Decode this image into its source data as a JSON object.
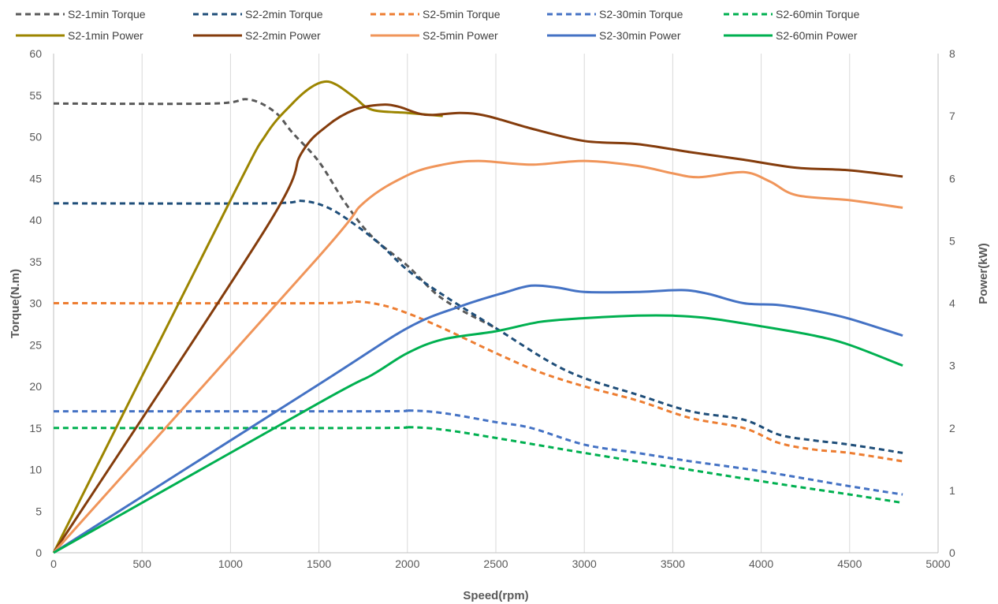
{
  "chart_data": {
    "type": "line",
    "xlabel": "Speed(rpm)",
    "ylabel_left": "Torque(N.m)",
    "ylabel_right": "Power(kW)",
    "xlim": [
      0,
      5000
    ],
    "ylim_left": [
      0,
      60
    ],
    "ylim_right": [
      0,
      8
    ],
    "x_ticks": [
      0,
      500,
      1000,
      1500,
      2000,
      2500,
      3000,
      3500,
      4000,
      4500,
      5000
    ],
    "y_ticks_left": [
      0,
      5,
      10,
      15,
      20,
      25,
      30,
      35,
      40,
      45,
      50,
      55,
      60
    ],
    "y_ticks_right": [
      0,
      1,
      2,
      3,
      4,
      5,
      6,
      7,
      8
    ],
    "grid": "vertical",
    "legend_position": "top",
    "series": [
      {
        "name": "S2-1min Torque",
        "axis": "left",
        "style": "dashed",
        "color": "#595959",
        "x": [
          0,
          900,
          1100,
          1250,
          1350,
          1500,
          1650,
          1800,
          2000,
          2200,
          2500
        ],
        "y": [
          54,
          54,
          54.5,
          53,
          50.5,
          47,
          42,
          38,
          34.5,
          30.5,
          27
        ]
      },
      {
        "name": "S2-2min Torque",
        "axis": "left",
        "style": "dashed",
        "color": "#1f4e79",
        "x": [
          0,
          1200,
          1400,
          1550,
          1700,
          1850,
          2000,
          2200,
          2500,
          2800,
          3000,
          3300,
          3600,
          3900,
          4100,
          4300,
          4500,
          4800
        ],
        "y": [
          42,
          42,
          42.3,
          41.5,
          39.5,
          37,
          34,
          31,
          27,
          23,
          21,
          19,
          17,
          16,
          14.2,
          13.5,
          13,
          12
        ]
      },
      {
        "name": "S2-5min Torque",
        "axis": "left",
        "style": "dashed",
        "color": "#ed7d31",
        "x": [
          0,
          1500,
          1700,
          1850,
          2000,
          2200,
          2500,
          2750,
          3000,
          3300,
          3600,
          3900,
          4100,
          4300,
          4500,
          4800
        ],
        "y": [
          30,
          30,
          30.2,
          29.8,
          28.8,
          27,
          24,
          21.7,
          20,
          18.3,
          16.2,
          15,
          13.2,
          12.4,
          12,
          11
        ]
      },
      {
        "name": "S2-30min Torque",
        "axis": "left",
        "style": "dashed",
        "color": "#4472c4",
        "x": [
          0,
          1800,
          2000,
          2200,
          2500,
          2700,
          3000,
          3300,
          3600,
          4000,
          4500,
          4800
        ],
        "y": [
          17,
          17,
          17.1,
          16.8,
          15.7,
          15,
          13,
          12,
          11,
          9.8,
          8,
          7
        ]
      },
      {
        "name": "S2-60min Torque",
        "axis": "left",
        "style": "dashed",
        "color": "#00b050",
        "x": [
          0,
          1800,
          2000,
          2200,
          2500,
          3000,
          3500,
          4000,
          4500,
          4800
        ],
        "y": [
          15,
          15,
          15.1,
          14.8,
          13.8,
          12,
          10.3,
          8.6,
          7,
          6
        ]
      },
      {
        "name": "S2-1min Power",
        "axis": "right",
        "style": "solid",
        "color": "#9c8500",
        "x": [
          0,
          1000,
          1200,
          1350,
          1450,
          1530,
          1600,
          1700,
          1800,
          2000,
          2200
        ],
        "y": [
          0,
          5.65,
          6.7,
          7.2,
          7.45,
          7.55,
          7.5,
          7.3,
          7.1,
          7.05,
          7.0
        ]
      },
      {
        "name": "S2-2min Power",
        "axis": "right",
        "style": "solid",
        "color": "#843c0c",
        "x": [
          0,
          1200,
          1400,
          1550,
          1700,
          1850,
          1950,
          2100,
          2300,
          2450,
          2700,
          3000,
          3300,
          3600,
          3900,
          4200,
          4500,
          4800
        ],
        "y": [
          0,
          5.2,
          6.4,
          6.85,
          7.1,
          7.18,
          7.15,
          7.02,
          7.05,
          7.0,
          6.8,
          6.6,
          6.55,
          6.42,
          6.3,
          6.17,
          6.13,
          6.03
        ]
      },
      {
        "name": "S2-5min Power",
        "axis": "right",
        "style": "solid",
        "color": "#f0955a",
        "x": [
          0,
          1500,
          1750,
          2000,
          2200,
          2400,
          2700,
          3000,
          3300,
          3500,
          3650,
          3900,
          4050,
          4200,
          4500,
          4800
        ],
        "y": [
          0,
          4.75,
          5.6,
          6.05,
          6.22,
          6.28,
          6.22,
          6.28,
          6.2,
          6.08,
          6.02,
          6.1,
          5.95,
          5.73,
          5.65,
          5.53
        ]
      },
      {
        "name": "S2-30min Power",
        "axis": "right",
        "style": "solid",
        "color": "#4472c4",
        "x": [
          0,
          1500,
          2000,
          2300,
          2550,
          2700,
          2850,
          3000,
          3300,
          3550,
          3700,
          3900,
          4100,
          4300,
          4500,
          4800
        ],
        "y": [
          0,
          2.7,
          3.6,
          3.95,
          4.17,
          4.28,
          4.25,
          4.18,
          4.18,
          4.21,
          4.15,
          4.0,
          3.97,
          3.88,
          3.75,
          3.48
        ]
      },
      {
        "name": "S2-60min Power",
        "axis": "right",
        "style": "solid",
        "color": "#00b050",
        "x": [
          0,
          1500,
          1800,
          2000,
          2200,
          2500,
          2750,
          3000,
          3300,
          3500,
          3700,
          4000,
          4300,
          4500,
          4800
        ],
        "y": [
          0,
          2.4,
          2.85,
          3.2,
          3.42,
          3.55,
          3.7,
          3.76,
          3.8,
          3.8,
          3.76,
          3.63,
          3.48,
          3.33,
          3.0
        ]
      }
    ]
  }
}
